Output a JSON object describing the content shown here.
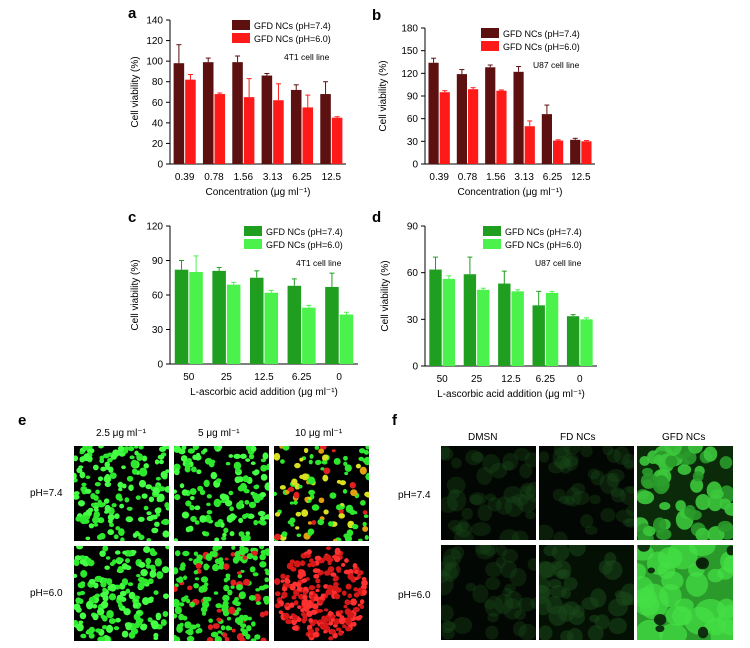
{
  "chart_data": [
    {
      "panel": "a",
      "type": "bar",
      "ylabel": "Cell viability (%)",
      "xlabel": "Concentration (μg ml⁻¹)",
      "ylim": [
        0,
        140
      ],
      "yticks": [
        0,
        20,
        40,
        60,
        80,
        100,
        120,
        140
      ],
      "categories": [
        "0.39",
        "0.78",
        "1.56",
        "3.13",
        "6.25",
        "12.5"
      ],
      "annotation": "4T1 cell line",
      "legend_position": "top-right",
      "series": [
        {
          "name": "GFD NCs (pH=7.4)",
          "color": "#5c1010",
          "values": [
            98,
            99,
            99,
            86,
            72,
            68
          ],
          "errors": [
            18,
            4,
            6,
            2,
            5,
            12
          ]
        },
        {
          "name": "GFD NCs (pH=6.0)",
          "color": "#ff1a1a",
          "values": [
            82,
            68,
            65,
            62,
            55,
            45
          ],
          "errors": [
            5,
            1,
            18,
            16,
            12,
            1
          ]
        }
      ]
    },
    {
      "panel": "b",
      "type": "bar",
      "ylabel": "Cell viability (%)",
      "xlabel": "Concentration (μg ml⁻¹)",
      "ylim": [
        0,
        180
      ],
      "yticks": [
        0,
        30,
        60,
        90,
        120,
        150,
        180
      ],
      "categories": [
        "0.39",
        "0.78",
        "1.56",
        "3.13",
        "6.25",
        "12.5"
      ],
      "annotation": "U87 cell line",
      "legend_position": "top-right",
      "series": [
        {
          "name": "GFD NCs (pH=7.4)",
          "color": "#5c1010",
          "values": [
            134,
            119,
            128,
            122,
            66,
            32
          ],
          "errors": [
            6,
            6,
            3,
            7,
            12,
            2
          ]
        },
        {
          "name": "GFD NCs (pH=6.0)",
          "color": "#ff1a1a",
          "values": [
            95,
            99,
            97,
            50,
            31,
            30
          ],
          "errors": [
            2,
            2,
            1,
            7,
            1,
            1
          ]
        }
      ]
    },
    {
      "panel": "c",
      "type": "bar",
      "ylabel": "Cell viability (%)",
      "xlabel": "L-ascorbic acid addition (μg ml⁻¹)",
      "ylim": [
        0,
        120
      ],
      "yticks": [
        0,
        30,
        60,
        90,
        120
      ],
      "categories": [
        "50",
        "25",
        "12.5",
        "6.25",
        "0"
      ],
      "annotation": "4T1 cell line",
      "legend_position": "top-right",
      "series": [
        {
          "name": "GFD NCs (pH=7.4)",
          "color": "#1f9e1f",
          "values": [
            82,
            81,
            75,
            68,
            67
          ],
          "errors": [
            8,
            3,
            6,
            6,
            12
          ]
        },
        {
          "name": "GFD NCs (pH=6.0)",
          "color": "#4cf24c",
          "values": [
            80,
            69,
            62,
            49,
            43
          ],
          "errors": [
            14,
            2,
            2,
            2,
            2
          ]
        }
      ]
    },
    {
      "panel": "d",
      "type": "bar",
      "ylabel": "Cell viability (%)",
      "xlabel": "L-ascorbic acid addition (μg ml⁻¹)",
      "ylim": [
        0,
        90
      ],
      "yticks": [
        0,
        30,
        60,
        90
      ],
      "categories": [
        "50",
        "25",
        "12.5",
        "6.25",
        "0"
      ],
      "annotation": "U87 cell line",
      "legend_position": "top-right",
      "series": [
        {
          "name": "GFD NCs (pH=7.4)",
          "color": "#1f9e1f",
          "values": [
            62,
            59,
            53,
            39,
            32
          ],
          "errors": [
            8,
            11,
            8,
            9,
            1
          ]
        },
        {
          "name": "GFD NCs (pH=6.0)",
          "color": "#4cf24c",
          "values": [
            56,
            49,
            48,
            47,
            30
          ],
          "errors": [
            2,
            1,
            1,
            1,
            1
          ]
        }
      ]
    }
  ],
  "panel_e": {
    "letter": "e",
    "columns": [
      "2.5 μg ml⁻¹",
      "5 μg ml⁻¹",
      "10 μg ml⁻¹"
    ],
    "rows": [
      "pH=7.4",
      "pH=6.0"
    ]
  },
  "panel_f": {
    "letter": "f",
    "columns": [
      "DMSN",
      "FD NCs",
      "GFD NCs"
    ],
    "rows": [
      "pH=7.4",
      "pH=6.0"
    ]
  }
}
